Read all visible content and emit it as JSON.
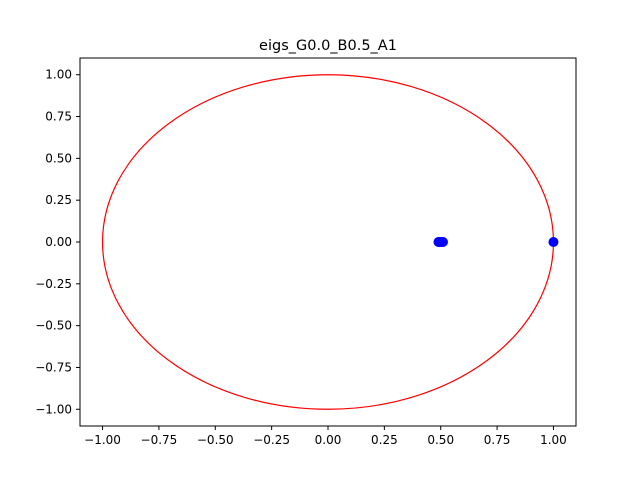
{
  "chart_data": {
    "type": "scatter",
    "title": "eigs_G0.0_B0.5_A1",
    "xlabel": "",
    "ylabel": "",
    "xlim": [
      -1.1,
      1.1
    ],
    "ylim": [
      -1.1,
      1.1
    ],
    "grid": false,
    "xticks": [
      "−1.00",
      "−0.75",
      "−0.50",
      "−0.25",
      "0.00",
      "0.25",
      "0.50",
      "0.75",
      "1.00"
    ],
    "xtick_values": [
      -1.0,
      -0.75,
      -0.5,
      -0.25,
      0.0,
      0.25,
      0.5,
      0.75,
      1.0
    ],
    "yticks": [
      "1.00",
      "0.75",
      "0.50",
      "0.25",
      "0.00",
      "−0.25",
      "−0.50",
      "−0.75",
      "−1.00"
    ],
    "ytick_values": [
      1.0,
      0.75,
      0.5,
      0.25,
      0.0,
      -0.25,
      -0.5,
      -0.75,
      -1.0
    ],
    "unit_circle": {
      "center": [
        0,
        0
      ],
      "radius": 1,
      "color": "#ff0000"
    },
    "series": [
      {
        "color": "#0000ff",
        "points": [
          [
            0.49,
            0.0
          ],
          [
            0.495,
            0.0
          ],
          [
            0.5,
            0.0
          ],
          [
            0.505,
            0.0
          ],
          [
            0.51,
            0.0
          ],
          [
            1.0,
            0.0
          ]
        ]
      }
    ]
  }
}
